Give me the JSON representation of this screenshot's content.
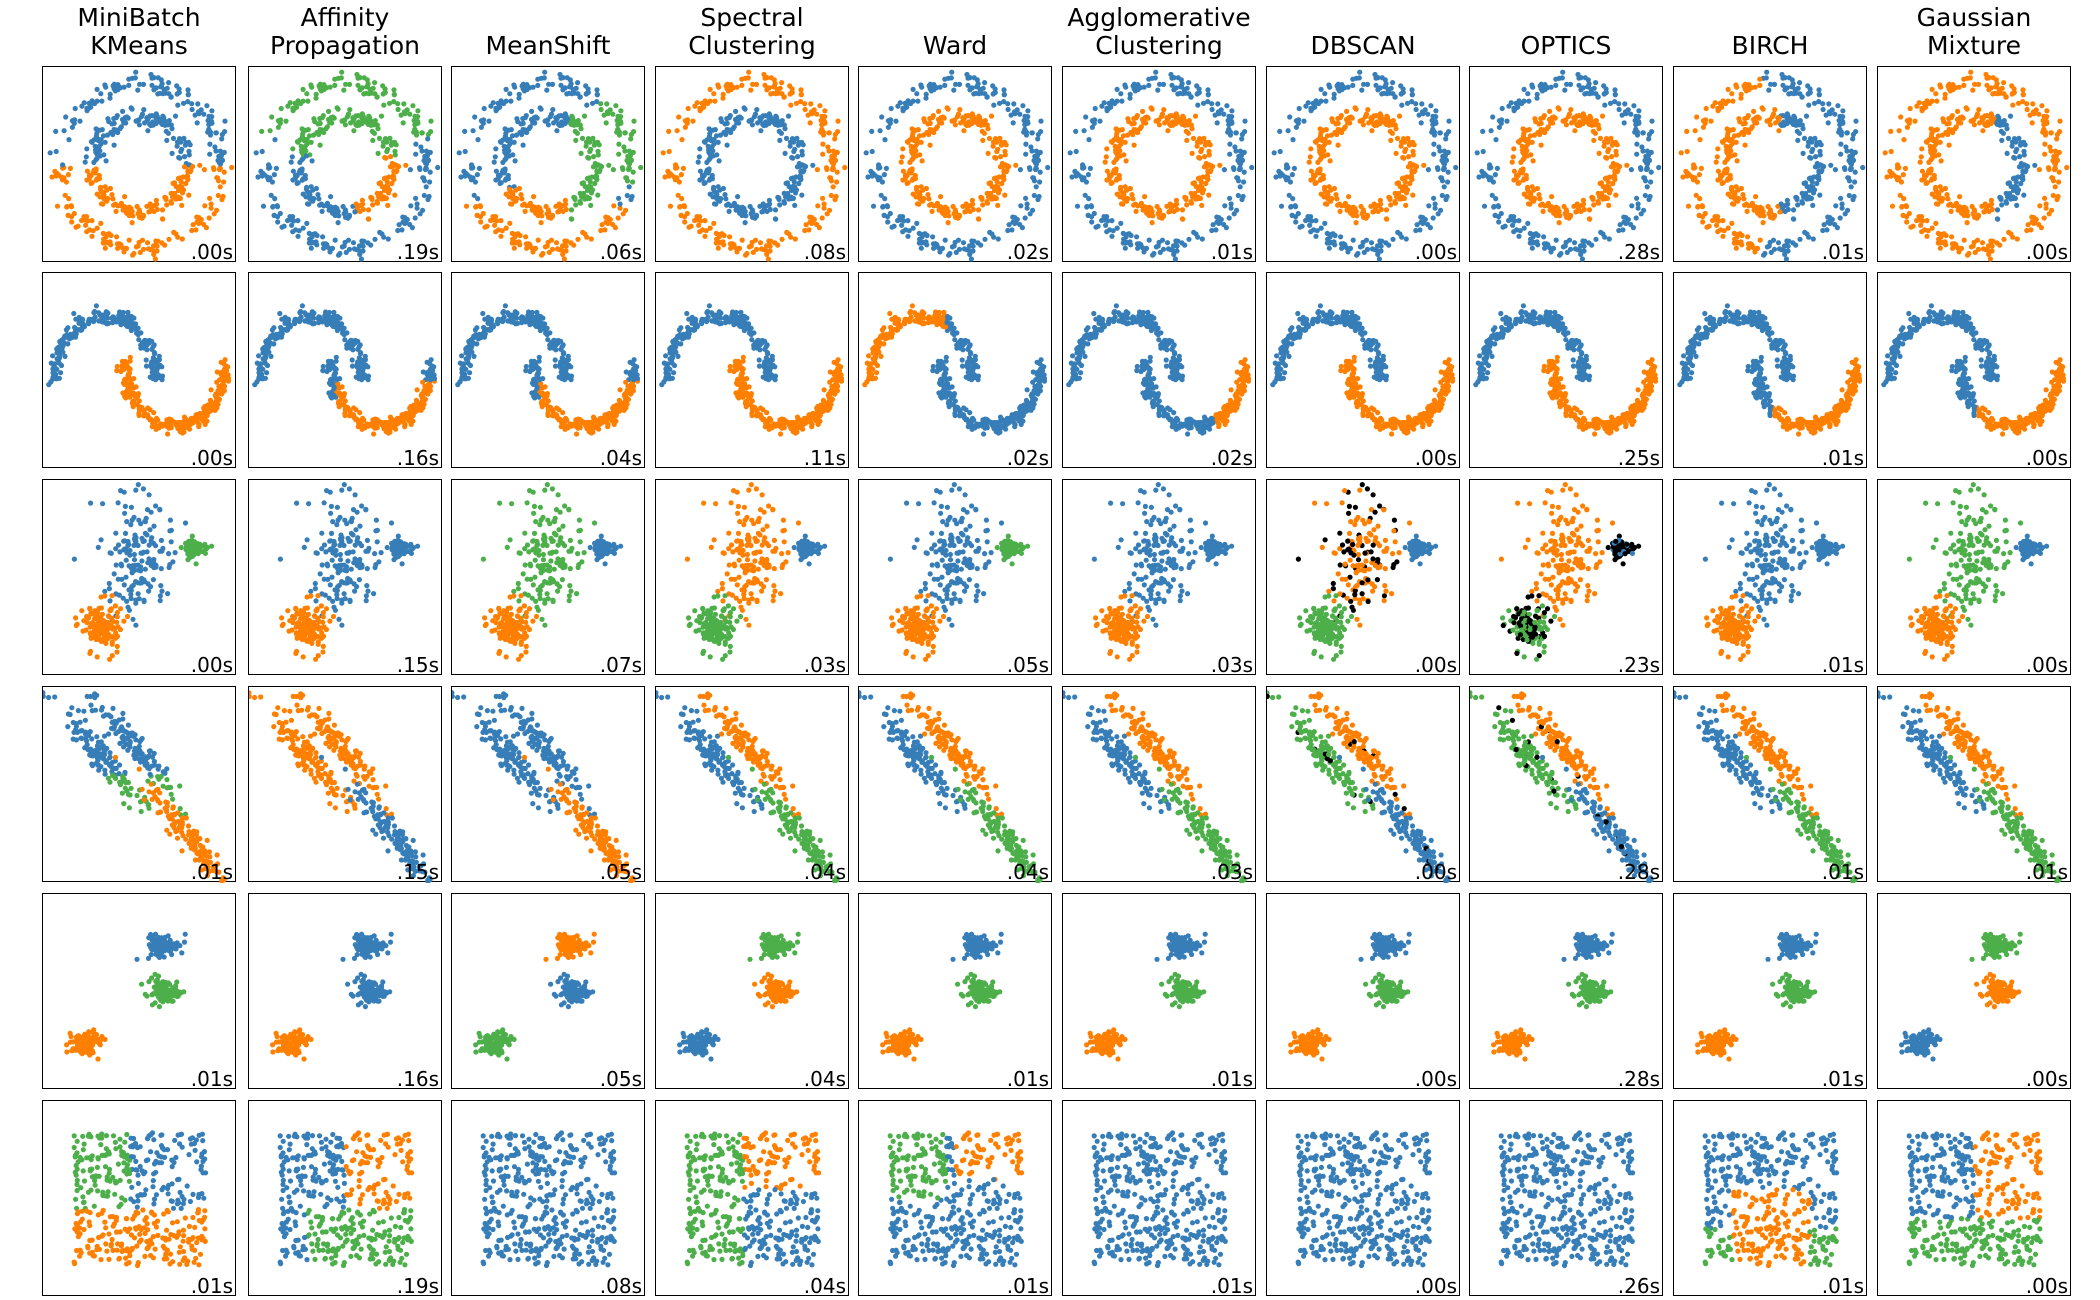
{
  "chart_data": {
    "type": "scatter",
    "title": "",
    "xlabel": "",
    "ylabel": "",
    "grid": false,
    "algorithms": [
      "MiniBatch\nKMeans",
      "Affinity\nPropagation",
      "MeanShift",
      "Spectral\nClustering",
      "Ward",
      "Agglomerative\nClustering",
      "DBSCAN",
      "OPTICS",
      "BIRCH",
      "Gaussian\nMixture"
    ],
    "datasets": [
      "noisy_circles",
      "noisy_moons",
      "varied",
      "aniso",
      "blobs",
      "no_structure"
    ],
    "cluster_colors": [
      "#377eb8",
      "#ff7f00",
      "#4daf4a",
      "#f781bf",
      "#a65628",
      "#984ea3"
    ],
    "noise_color": "#000000",
    "timings": [
      [
        ".00s",
        ".19s",
        ".06s",
        ".08s",
        ".02s",
        ".01s",
        ".00s",
        ".28s",
        ".01s",
        ".00s"
      ],
      [
        ".00s",
        ".16s",
        ".04s",
        ".11s",
        ".02s",
        ".02s",
        ".00s",
        ".25s",
        ".01s",
        ".00s"
      ],
      [
        ".00s",
        ".15s",
        ".07s",
        ".03s",
        ".05s",
        ".03s",
        ".00s",
        ".23s",
        ".01s",
        ".00s"
      ],
      [
        ".01s",
        ".15s",
        ".05s",
        ".04s",
        ".04s",
        ".03s",
        ".00s",
        ".28s",
        ".01s",
        ".01s"
      ],
      [
        ".01s",
        ".16s",
        ".05s",
        ".04s",
        ".01s",
        ".01s",
        ".00s",
        ".28s",
        ".01s",
        ".00s"
      ],
      [
        ".01s",
        ".19s",
        ".08s",
        ".04s",
        ".01s",
        ".01s",
        ".00s",
        ".26s",
        ".01s",
        ".00s"
      ]
    ]
  }
}
